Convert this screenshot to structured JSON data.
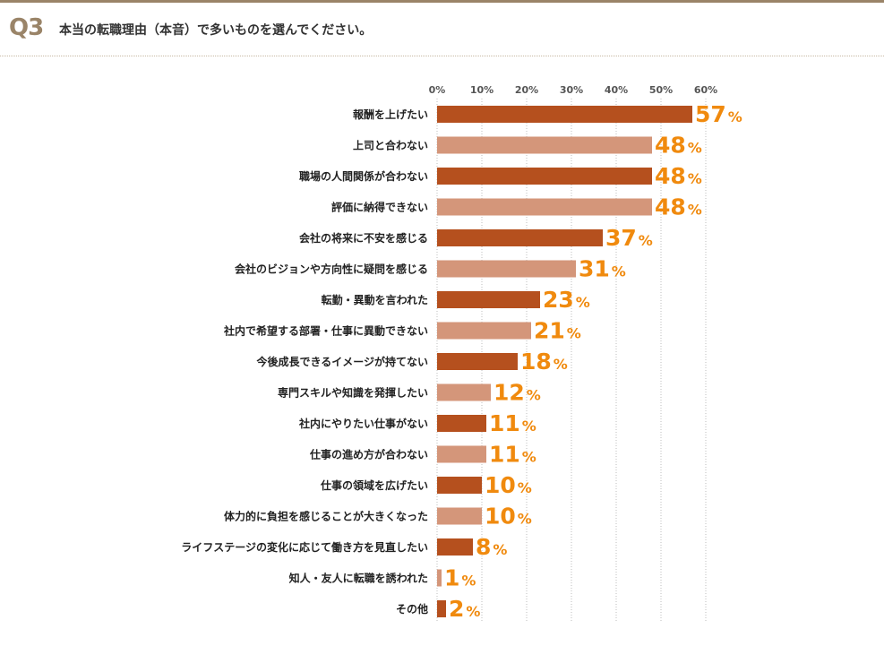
{
  "header": {
    "q_label": "Q3",
    "question": "本当の転職理由（本音）で多いものを選んでください。"
  },
  "colors": {
    "dark_bar": "#b5501e",
    "light_bar": "#d4967a",
    "value_label": "#f08a0e",
    "q_label": "#9a8468"
  },
  "chart_data": {
    "type": "bar",
    "orientation": "horizontal",
    "title": "",
    "xlabel": "",
    "ylabel": "",
    "xlim": [
      0,
      60
    ],
    "x_ticks": [
      "0%",
      "10%",
      "20%",
      "30%",
      "40%",
      "50%",
      "60%"
    ],
    "grid": "vertical",
    "categories": [
      "報酬を上げたい",
      "上司と合わない",
      "職場の人間関係が合わない",
      "評価に納得できない",
      "会社の将来に不安を感じる",
      "会社のビジョンや方向性に疑問を感じる",
      "転勤・異動を言われた",
      "社内で希望する部署・仕事に異動できない",
      "今後成長できるイメージが持てない",
      "専門スキルや知識を発揮したい",
      "社内にやりたい仕事がない",
      "仕事の進め方が合わない",
      "仕事の領域を広げたい",
      "体力的に負担を感じることが大きくなった",
      "ライフステージの変化に応じて働き方を見直したい",
      "知人・友人に転職を誘われた",
      "その他"
    ],
    "values": [
      57,
      48,
      48,
      48,
      37,
      31,
      23,
      21,
      18,
      12,
      11,
      11,
      10,
      10,
      8,
      1,
      2
    ],
    "value_labels": [
      "57",
      "48",
      "48",
      "48",
      "37",
      "31",
      "23",
      "21",
      "18",
      "12",
      "11",
      "11",
      "10",
      "10",
      "8",
      "1",
      "2"
    ],
    "unit": "%"
  }
}
